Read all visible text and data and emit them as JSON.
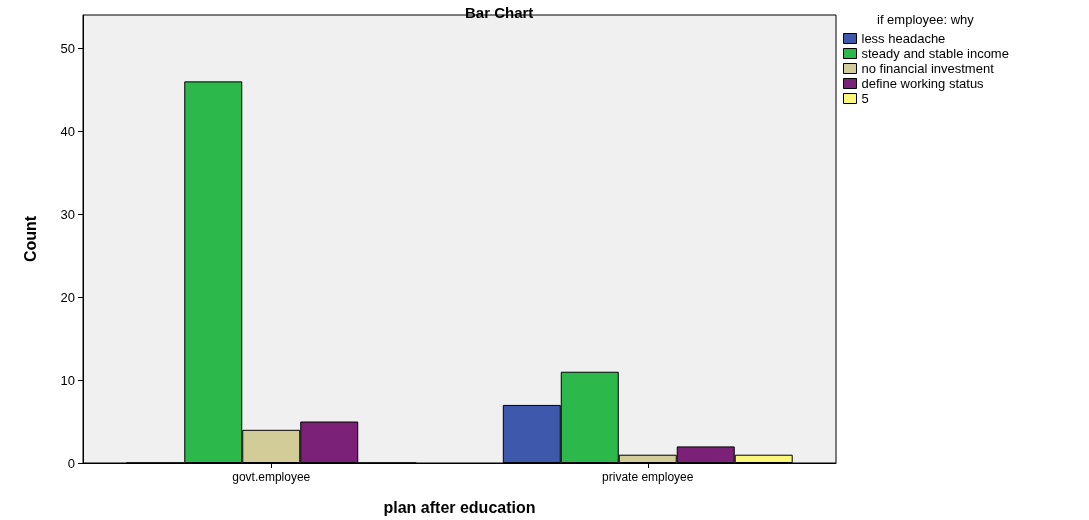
{
  "chart_data": {
    "type": "bar",
    "title": "Bar Chart",
    "xlabel": "plan after education",
    "ylabel": "Count",
    "legend_title": "if employee: why",
    "categories": [
      "govt.employee",
      "private employee"
    ],
    "series": [
      {
        "name": "less headache",
        "color": "#3e58ac",
        "values": [
          0,
          7
        ]
      },
      {
        "name": "steady and stable income",
        "color": "#2db84b",
        "values": [
          46,
          11
        ]
      },
      {
        "name": "no financial investment",
        "color": "#d2cc98",
        "values": [
          4,
          1
        ]
      },
      {
        "name": "define working status",
        "color": "#7b2177",
        "values": [
          5,
          2
        ]
      },
      {
        "name": "5",
        "color": "#fbf77a",
        "values": [
          0,
          1
        ]
      }
    ],
    "ylim": [
      0,
      54
    ],
    "yticks": [
      0,
      10,
      20,
      30,
      40,
      50
    ],
    "grid": false,
    "legend": "right"
  }
}
